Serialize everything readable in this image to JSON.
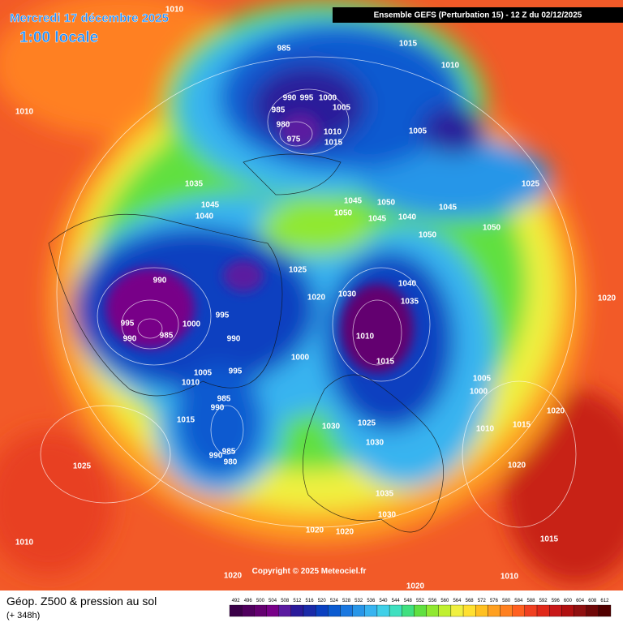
{
  "header": {
    "date": "Mercredi 17 décembre 2025",
    "time": "1:00 locale",
    "model": "Ensemble GEFS  (Perturbation 15)  -  12 Z du 02/12/2025"
  },
  "footer": {
    "title": "Géop. Z500 & pression au sol",
    "lead": "(+ 348h)",
    "copyright": "Copyright © 2025 Meteociel.fr"
  },
  "pressure_labels": [
    1010,
    1010,
    985,
    1015,
    1010,
    990,
    995,
    1000,
    985,
    1005,
    980,
    975,
    1010,
    1015,
    1005,
    1035,
    1045,
    1040,
    1045,
    1050,
    1050,
    1045,
    1040,
    1045,
    1050,
    1050,
    1025,
    990,
    1025,
    1020,
    1030,
    1040,
    1035,
    995,
    990,
    985,
    1000,
    995,
    990,
    1010,
    1000,
    1015,
    1005,
    1010,
    995,
    985,
    990,
    1015,
    1005,
    1000,
    1010,
    1015,
    1020,
    1020,
    1030,
    1025,
    1030,
    985,
    990,
    980,
    1025,
    1020,
    1035,
    1030,
    1020,
    1020,
    1010,
    1015,
    1010,
    1020,
    1020
  ],
  "legend": {
    "values": [
      492,
      496,
      500,
      504,
      508,
      512,
      516,
      520,
      524,
      528,
      532,
      536,
      540,
      544,
      548,
      552,
      556,
      560,
      564,
      568,
      572,
      576,
      580,
      584,
      588,
      592,
      596,
      600,
      604,
      608,
      612
    ],
    "colors": [
      "#3a0048",
      "#50005e",
      "#640070",
      "#780088",
      "#5a1aa0",
      "#2a1a9a",
      "#1a2aa8",
      "#0a40c0",
      "#0a5ad0",
      "#1a78e0",
      "#2896e8",
      "#38b4f0",
      "#40d0e8",
      "#40e0c0",
      "#40e080",
      "#60e040",
      "#90e830",
      "#c0f030",
      "#f0f040",
      "#ffe030",
      "#ffc020",
      "#ffa020",
      "#ff8020",
      "#ff6020",
      "#f04020",
      "#e02818",
      "#c81818",
      "#b01010",
      "#901010",
      "#700808",
      "#500000"
    ]
  }
}
